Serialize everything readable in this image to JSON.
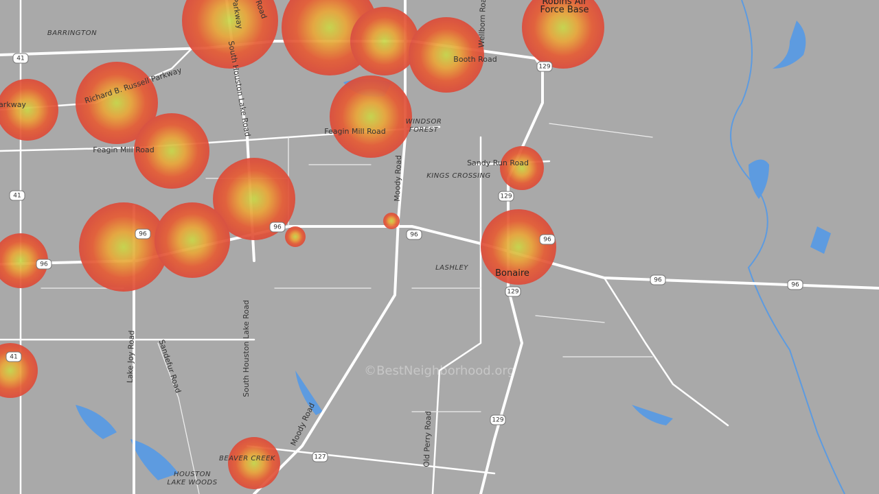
{
  "places": [
    [
      "BARRINGTON"
    ],
    [
      "WINDSOR",
      "FOREST"
    ],
    [
      "KINGS CROSSING"
    ],
    [
      "LASHLEY"
    ],
    [
      "BEAVER CREEK"
    ],
    [
      "HOUSTON",
      "LAKE WOODS"
    ]
  ],
  "towns": [
    [
      "Bonaire"
    ],
    [
      "Robins Air",
      "Force Base"
    ]
  ],
  "roads": [
    "Parkway",
    "Road",
    "Wellborn Road",
    "Booth Road",
    "Richard B. Russell Parkway",
    "arkway",
    "South Houston Lake Road",
    "Feagin Mill Road",
    "Feagin Mill Road",
    "Moody Road",
    "Sandy Run Road",
    "Lake Joy Road",
    "Sandefur Road",
    "South Houston Lake Road",
    "Moody Road",
    "Old Perry Road"
  ],
  "shields": [
    "41",
    "41",
    "41",
    "96",
    "96",
    "96",
    "96",
    "96",
    "96",
    "96",
    "129",
    "129",
    "129",
    "129",
    "127"
  ],
  "watermark": "©BestNeighborhood.org"
}
